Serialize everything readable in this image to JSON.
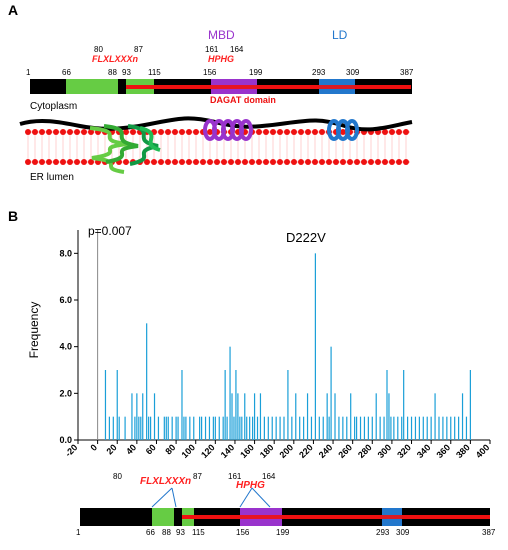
{
  "panel_a": {
    "letter": "A",
    "mbd_label": "MBD",
    "ld_label": "LD",
    "motif1": "FLXLXXXn",
    "motif1_start": "80",
    "motif1_end": "87",
    "motif2": "HPHG",
    "motif2_start": "161",
    "motif2_end": "164",
    "positions": [
      "1",
      "66",
      "88",
      "93",
      "115",
      "156",
      "199",
      "293",
      "309",
      "387"
    ],
    "dagat_label": "DAGAT domain",
    "cytoplasm_label": "Cytoplasm",
    "er_lumen_label": "ER lumen",
    "colors": {
      "green": "#66cc44",
      "purple": "#9933cc",
      "blue": "#2277cc",
      "red": "#ee1111",
      "black": "#000000"
    }
  },
  "panel_b": {
    "letter": "B",
    "p_value": "p=0.007",
    "peak_label": "D222V",
    "bottom_motif1": "FLXLXXXn",
    "bottom_motif1_start": "80",
    "bottom_motif1_end": "87",
    "bottom_motif2": "HPHG",
    "bottom_motif2_start": "161",
    "bottom_motif2_end": "164",
    "bottom_positions": [
      "1",
      "66",
      "88",
      "93",
      "115",
      "156",
      "199",
      "293",
      "309",
      "387"
    ]
  },
  "chart_data": {
    "type": "bar",
    "ylabel": "Frequency",
    "xlim": [
      -20,
      400
    ],
    "ylim": [
      0,
      9
    ],
    "x_ticks": [
      "-20",
      "0",
      "20",
      "40",
      "60",
      "80",
      "100",
      "120",
      "140",
      "160",
      "180",
      "200",
      "220",
      "240",
      "260",
      "280",
      "300",
      "320",
      "340",
      "360",
      "380",
      "400"
    ],
    "y_ticks": [
      "0.0",
      "2.0",
      "4.0",
      "6.0",
      "8.0"
    ],
    "bar_color": "#1a9fd8",
    "x": [
      8,
      12,
      16,
      20,
      22,
      28,
      35,
      38,
      40,
      42,
      44,
      46,
      50,
      52,
      54,
      58,
      62,
      68,
      70,
      72,
      76,
      80,
      82,
      86,
      88,
      90,
      94,
      98,
      104,
      106,
      110,
      114,
      118,
      120,
      124,
      128,
      130,
      132,
      135,
      137,
      139,
      141,
      143,
      145,
      147,
      150,
      152,
      155,
      158,
      160,
      163,
      166,
      170,
      174,
      178,
      182,
      186,
      190,
      194,
      198,
      202,
      206,
      210,
      214,
      218,
      222,
      226,
      230,
      234,
      236,
      238,
      242,
      246,
      250,
      254,
      258,
      262,
      264,
      268,
      272,
      276,
      280,
      284,
      288,
      292,
      295,
      297,
      299,
      302,
      306,
      310,
      312,
      316,
      320,
      324,
      328,
      332,
      336,
      340,
      344,
      348,
      352,
      356,
      360,
      364,
      368,
      372,
      376,
      380
    ],
    "values": [
      3,
      1,
      1,
      3,
      1,
      1,
      2,
      1,
      2,
      1,
      1,
      2,
      5,
      1,
      1,
      2,
      1,
      1,
      1,
      1,
      1,
      1,
      1,
      3,
      1,
      1,
      1,
      1,
      1,
      1,
      1,
      1,
      1,
      1,
      1,
      1,
      3,
      1,
      4,
      2,
      1,
      3,
      2,
      1,
      1,
      2,
      1,
      1,
      1,
      2,
      1,
      2,
      1,
      1,
      1,
      1,
      1,
      1,
      3,
      1,
      2,
      1,
      1,
      2,
      1,
      8,
      1,
      1,
      2,
      1,
      4,
      2,
      1,
      1,
      1,
      2,
      1,
      1,
      1,
      1,
      1,
      1,
      2,
      1,
      1,
      3,
      2,
      1,
      1,
      1,
      1,
      3,
      1,
      1,
      1,
      1,
      1,
      1,
      1,
      2,
      1,
      1,
      1,
      1,
      1,
      1,
      2,
      1,
      3
    ]
  }
}
